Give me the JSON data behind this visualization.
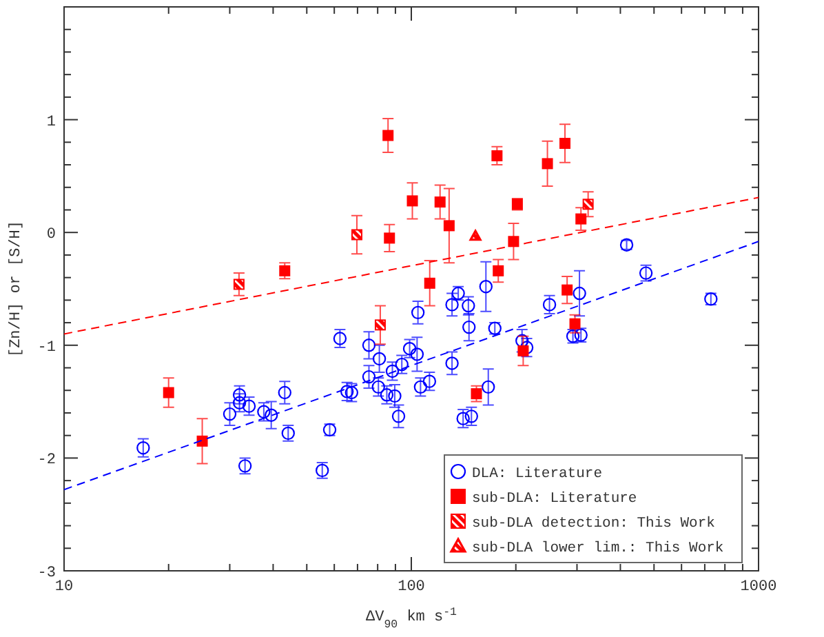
{
  "chart_data": {
    "type": "scatter",
    "xlabel": "ΔV$_{90}$ km s$^{-1}$",
    "ylabel": "[Zn/H] or [S/H]",
    "log": "x",
    "xlim": [
      10,
      1000
    ],
    "ylim": [
      -3,
      2
    ],
    "xticks": [
      10,
      {
        "value": 20,
        "label": null
      },
      {
        "value": 30,
        "label": null
      },
      {
        "value": 40,
        "label": null
      },
      {
        "value": 50,
        "label": null
      },
      {
        "value": 60,
        "label": null
      },
      {
        "value": 70,
        "label": null
      },
      {
        "value": 80,
        "label": null
      },
      {
        "value": 90,
        "label": null
      },
      100,
      {
        "value": 200,
        "label": null
      },
      {
        "value": 300,
        "label": null
      },
      {
        "value": 400,
        "label": null
      },
      {
        "value": 500,
        "label": null
      },
      {
        "value": 600,
        "label": null
      },
      {
        "value": 700,
        "label": null
      },
      {
        "value": 800,
        "label": null
      },
      {
        "value": 900,
        "label": null
      },
      1000
    ],
    "yticks": [
      -3,
      {
        "value": -2.8,
        "label": null
      },
      {
        "value": -2.6,
        "label": null
      },
      {
        "value": -2.4,
        "label": null
      },
      {
        "value": -2.2,
        "label": null
      },
      -2,
      {
        "value": -1.8,
        "label": null
      },
      {
        "value": -1.6,
        "label": null
      },
      {
        "value": -1.4,
        "label": null
      },
      {
        "value": -1.2,
        "label": null
      },
      -1,
      {
        "value": -0.8,
        "label": null
      },
      {
        "value": -0.6,
        "label": null
      },
      {
        "value": -0.4,
        "label": null
      },
      {
        "value": -0.2,
        "label": null
      },
      0,
      {
        "value": 0.2,
        "label": null
      },
      {
        "value": 0.4,
        "label": null
      },
      {
        "value": 0.6,
        "label": null
      },
      {
        "value": 0.8,
        "label": null
      },
      1,
      {
        "value": 1.2,
        "label": null
      },
      {
        "value": 1.4,
        "label": null
      },
      {
        "value": 1.6,
        "label": null
      },
      {
        "value": 1.8,
        "label": null
      }
    ],
    "grid": false,
    "legend": "bottom right",
    "series": [
      {
        "name": "DLA: Literature",
        "color": "#0000ff",
        "marker": "circle",
        "x": [
          16.9,
          33.2,
          30,
          32.0,
          32.0,
          34.1,
          37.6,
          39.5,
          43.2,
          44.2,
          55.4,
          58.2,
          62.3,
          65.3,
          67.3,
          75.5,
          75.5,
          80.9,
          80.4,
          88.2,
          85,
          89.6,
          91.9,
          93.9,
          98.9,
          104.5,
          103.9,
          131,
          136.5,
          146,
          146.6,
          164,
          174,
          131,
          106.3,
          112.8,
          141,
          149,
          166.6,
          208.4,
          215,
          250,
          305,
          292,
          308,
          417,
          474,
          729
        ],
        "values": [
          -1.91,
          -2.07,
          -1.61,
          -1.44,
          -1.51,
          -1.54,
          -1.59,
          -1.62,
          -1.42,
          -1.78,
          -2.11,
          -1.75,
          -0.94,
          -1.41,
          -1.42,
          -1.0,
          -1.28,
          -1.12,
          -1.37,
          -1.23,
          -1.44,
          -1.45,
          -1.63,
          -1.17,
          -1.03,
          -0.71,
          -1.08,
          -0.64,
          -0.54,
          -0.65,
          -0.84,
          -0.48,
          -0.85,
          -1.16,
          -1.37,
          -1.32,
          -1.65,
          -1.63,
          -1.37,
          -0.96,
          -1.02,
          -0.64,
          -0.54,
          -0.92,
          -0.91,
          -0.11,
          -0.36,
          -0.59
        ],
        "errors": [
          0.08,
          0.07,
          0.1,
          0.08,
          0.08,
          0.08,
          0.08,
          0.12,
          0.1,
          0.07,
          0.07,
          0.05,
          0.08,
          0.08,
          0.08,
          0.12,
          0.1,
          0.12,
          0.08,
          0.08,
          0.08,
          0.1,
          0.1,
          0.08,
          0.08,
          0.1,
          0.15,
          0.1,
          0.06,
          0.08,
          0.12,
          0.22,
          0.05,
          0.1,
          0.08,
          0.08,
          0.08,
          0.08,
          0.16,
          0.1,
          0.08,
          0.08,
          0.2,
          0.06,
          0.06,
          0.04,
          0.07,
          0.05
        ]
      },
      {
        "name": "sub-DLA: Literature",
        "color": "#ff0000",
        "marker": "square",
        "x": [
          85.7,
          100.7,
          86.5,
          43.2,
          121,
          128.5,
          176.5,
          246.6,
          277,
          202,
          308,
          197,
          113,
          178,
          281,
          296,
          210,
          154,
          20,
          25
        ],
        "values": [
          0.86,
          0.28,
          -0.05,
          -0.34,
          0.27,
          0.06,
          0.68,
          0.61,
          0.79,
          0.25,
          0.12,
          -0.08,
          -0.45,
          -0.34,
          -0.51,
          -0.81,
          -1.05,
          -1.43,
          -1.42,
          -1.85
        ],
        "errors": [
          0.15,
          0.16,
          0.12,
          0.07,
          0.15,
          0.33,
          0.08,
          0.2,
          0.17,
          0.05,
          0.1,
          0.16,
          0.2,
          0.1,
          0.12,
          0.08,
          0.13,
          0.07,
          0.13,
          0.2
        ]
      },
      {
        "name": "sub-DLA detection: This Work",
        "color": "#ff0000",
        "marker": "square",
        "x": [
          31.9,
          69.7,
          81.4,
          323
        ],
        "values": [
          -0.46,
          -0.02,
          -0.82,
          0.25
        ],
        "errors": [
          0.1,
          0.17,
          0.17,
          0.11
        ]
      },
      {
        "name": "sub-DLA lower lim.: This Work",
        "color": "#ff0000",
        "marker": "triangle",
        "x": [
          153
        ],
        "values": [
          -0.03
        ]
      },
      {
        "type": "line",
        "color": "#ff0000",
        "line_style": "dashed",
        "x": [
          10,
          1000
        ],
        "values": [
          -0.9,
          0.31
        ]
      },
      {
        "type": "line",
        "color": "#0000ff",
        "line_style": "dashed",
        "x": [
          10,
          1000
        ],
        "values": [
          -2.28,
          -0.08
        ]
      }
    ]
  }
}
